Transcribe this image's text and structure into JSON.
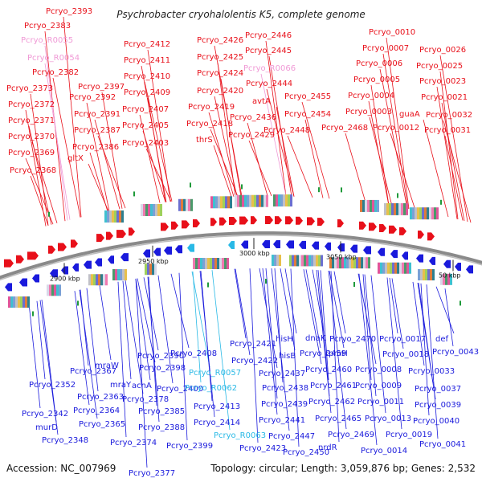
{
  "title": "Psychrobacter cryohalolentis K5, complete genome",
  "accession": "Accession: NC_007969",
  "summary": "Topology: circular; Length: 3,059,876 bp; Genes: 2,532",
  "ticks": [
    "2900 kbp",
    "2950 kbp",
    "3000 kbp",
    "3050 kbp",
    "50 kbp"
  ],
  "colors": {
    "forward": "#e8101a",
    "reverse": "#1a1adc",
    "rna": "#f09ad6",
    "trna": "#29b9e6",
    "gc": "#1f9a3a",
    "backbone": "#8a8a8a"
  },
  "top_labels": [
    {
      "text": "Pcryo_2393",
      "kind": "gene"
    },
    {
      "text": "Pcryo_2383",
      "kind": "gene"
    },
    {
      "text": "Pcryo_R0055",
      "kind": "rna"
    },
    {
      "text": "Pcryo_R0054",
      "kind": "rna"
    },
    {
      "text": "Pcryo_2382",
      "kind": "gene"
    },
    {
      "text": "Pcryo_2373",
      "kind": "gene"
    },
    {
      "text": "Pcryo_2372",
      "kind": "gene"
    },
    {
      "text": "Pcryo_2371",
      "kind": "gene"
    },
    {
      "text": "Pcryo_2370",
      "kind": "gene"
    },
    {
      "text": "Pcryo_2369",
      "kind": "gene"
    },
    {
      "text": "Pcryo_2368",
      "kind": "gene"
    },
    {
      "text": "Pcryo_2397",
      "kind": "gene"
    },
    {
      "text": "Pcryo_2392",
      "kind": "gene"
    },
    {
      "text": "Pcryo_2391",
      "kind": "gene"
    },
    {
      "text": "Pcryo_2387",
      "kind": "gene"
    },
    {
      "text": "Pcryo_2386",
      "kind": "gene"
    },
    {
      "text": "gltX",
      "kind": "gene"
    },
    {
      "text": "Pcryo_2412",
      "kind": "gene"
    },
    {
      "text": "Pcryo_2411",
      "kind": "gene"
    },
    {
      "text": "Pcryo_2410",
      "kind": "gene"
    },
    {
      "text": "Pcryo_2409",
      "kind": "gene"
    },
    {
      "text": "Pcryo_2407",
      "kind": "gene"
    },
    {
      "text": "Pcryo_2405",
      "kind": "gene"
    },
    {
      "text": "Pcryo_2403",
      "kind": "gene"
    },
    {
      "text": "Pcryo_2426",
      "kind": "gene"
    },
    {
      "text": "Pcryo_2425",
      "kind": "gene"
    },
    {
      "text": "Pcryo_2424",
      "kind": "gene"
    },
    {
      "text": "Pcryo_2420",
      "kind": "gene"
    },
    {
      "text": "Pcryo_2419",
      "kind": "gene"
    },
    {
      "text": "Pcryo_2418",
      "kind": "gene"
    },
    {
      "text": "thrS",
      "kind": "gene"
    },
    {
      "text": "Pcryo_2446",
      "kind": "gene"
    },
    {
      "text": "Pcryo_2445",
      "kind": "gene"
    },
    {
      "text": "Pcryo_R0066",
      "kind": "rna"
    },
    {
      "text": "Pcryo_2444",
      "kind": "gene"
    },
    {
      "text": "avtA",
      "kind": "gene"
    },
    {
      "text": "Pcryo_2436",
      "kind": "gene"
    },
    {
      "text": "Pcryo_2429",
      "kind": "gene"
    },
    {
      "text": "Pcryo_2448",
      "kind": "gene"
    },
    {
      "text": "Pcryo_2455",
      "kind": "gene"
    },
    {
      "text": "Pcryo_2454",
      "kind": "gene"
    },
    {
      "text": "Pcryo_2468",
      "kind": "gene"
    },
    {
      "text": "Pcryo_0010",
      "kind": "gene"
    },
    {
      "text": "Pcryo_0007",
      "kind": "gene"
    },
    {
      "text": "Pcryo_0006",
      "kind": "gene"
    },
    {
      "text": "Pcryo_0005",
      "kind": "gene"
    },
    {
      "text": "Pcryo_0004",
      "kind": "gene"
    },
    {
      "text": "Pcryo_0003",
      "kind": "gene"
    },
    {
      "text": "Pcryo_0012",
      "kind": "gene"
    },
    {
      "text": "Pcryo_0026",
      "kind": "gene"
    },
    {
      "text": "Pcryo_0025",
      "kind": "gene"
    },
    {
      "text": "Pcryo_0023",
      "kind": "gene"
    },
    {
      "text": "Pcryo_0021",
      "kind": "gene"
    },
    {
      "text": "guaA",
      "kind": "gene"
    },
    {
      "text": "Pcryo_0032",
      "kind": "gene"
    },
    {
      "text": "Pcryo_0031",
      "kind": "gene"
    }
  ],
  "bottom_labels": [
    {
      "text": "Pcryo_2352",
      "kind": "gene"
    },
    {
      "text": "Pcryo_2342",
      "kind": "gene"
    },
    {
      "text": "murD",
      "kind": "gene"
    },
    {
      "text": "Pcryo_2348",
      "kind": "gene"
    },
    {
      "text": "Pcryo_2367",
      "kind": "gene"
    },
    {
      "text": "Pcryo_2363",
      "kind": "gene"
    },
    {
      "text": "Pcryo_2364",
      "kind": "gene"
    },
    {
      "text": "Pcryo_2365",
      "kind": "gene"
    },
    {
      "text": "mraY",
      "kind": "gene"
    },
    {
      "text": "mraW",
      "kind": "gene"
    },
    {
      "text": "acnA",
      "kind": "gene"
    },
    {
      "text": "Pcryo_2378",
      "kind": "gene"
    },
    {
      "text": "Pcryo_2374",
      "kind": "gene"
    },
    {
      "text": "Pcryo_2377",
      "kind": "gene"
    },
    {
      "text": "Pcryo_2390",
      "kind": "gene"
    },
    {
      "text": "Pcryo_2398",
      "kind": "gene"
    },
    {
      "text": "Pcryo_2385",
      "kind": "gene"
    },
    {
      "text": "Pcryo_2388",
      "kind": "gene"
    },
    {
      "text": "Pcryo_2400",
      "kind": "gene"
    },
    {
      "text": "Pcryo_2408",
      "kind": "gene"
    },
    {
      "text": "Pcryo_2399",
      "kind": "gene"
    },
    {
      "text": "Pcryo_2421",
      "kind": "gene"
    },
    {
      "text": "Pcryo_2422",
      "kind": "gene"
    },
    {
      "text": "Pcryo_R0057",
      "kind": "trna"
    },
    {
      "text": "Pcryo_R0062",
      "kind": "trna"
    },
    {
      "text": "Pcryo_2413",
      "kind": "gene"
    },
    {
      "text": "Pcryo_2414",
      "kind": "gene"
    },
    {
      "text": "Pcryo_R0063",
      "kind": "trna"
    },
    {
      "text": "Pcryo_2423",
      "kind": "gene"
    },
    {
      "text": "hisH",
      "kind": "gene"
    },
    {
      "text": "hisB",
      "kind": "gene"
    },
    {
      "text": "Pcryo_2437",
      "kind": "gene"
    },
    {
      "text": "Pcryo_2438",
      "kind": "gene"
    },
    {
      "text": "Pcryo_2439",
      "kind": "gene"
    },
    {
      "text": "Pcryo_2441",
      "kind": "gene"
    },
    {
      "text": "Pcryo_2447",
      "kind": "gene"
    },
    {
      "text": "Pcryo_2450",
      "kind": "gene"
    },
    {
      "text": "dnaK",
      "kind": "gene"
    },
    {
      "text": "Pcryo_2459",
      "kind": "gene"
    },
    {
      "text": "Pcryo_2460",
      "kind": "gene"
    },
    {
      "text": "Pcryo_2461",
      "kind": "gene"
    },
    {
      "text": "Pcryo_2462",
      "kind": "gene"
    },
    {
      "text": "Pcryo_2465",
      "kind": "gene"
    },
    {
      "text": "Pcryo_2469",
      "kind": "gene"
    },
    {
      "text": "nrdR",
      "kind": "gene"
    },
    {
      "text": "Pcryo_2470",
      "kind": "gene"
    },
    {
      "text": "rpmH",
      "kind": "gene"
    },
    {
      "text": "Pcryo_0008",
      "kind": "gene"
    },
    {
      "text": "Pcryo_0009",
      "kind": "gene"
    },
    {
      "text": "Pcryo_0011",
      "kind": "gene"
    },
    {
      "text": "Pcryo_0013",
      "kind": "gene"
    },
    {
      "text": "Pcryo_0014",
      "kind": "gene"
    },
    {
      "text": "Pcryo_0017",
      "kind": "gene"
    },
    {
      "text": "Pcryo_0018",
      "kind": "gene"
    },
    {
      "text": "Pcryo_0019",
      "kind": "gene"
    },
    {
      "text": "def",
      "kind": "gene"
    },
    {
      "text": "Pcryo_0043",
      "kind": "gene"
    },
    {
      "text": "Pcryo_0033",
      "kind": "gene"
    },
    {
      "text": "Pcryo_0037",
      "kind": "gene"
    },
    {
      "text": "Pcryo_0039",
      "kind": "gene"
    },
    {
      "text": "Pcryo_0040",
      "kind": "gene"
    },
    {
      "text": "Pcryo_0041",
      "kind": "gene"
    }
  ]
}
